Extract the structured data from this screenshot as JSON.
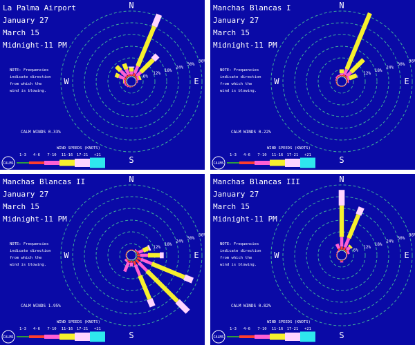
{
  "colors": {
    "background": "#0a0aa6",
    "grid": "#3fae9a",
    "text": "#ffffff",
    "speed_bins": [
      "#ffffff",
      "#2e9b3f",
      "#ff3d2e",
      "#ff5fd3",
      "#f6f02e",
      "#ffd4ff",
      "#2ee8ee"
    ]
  },
  "chart_data": [
    {
      "type": "wind-rose",
      "station": "La Palma Airport",
      "day_label": "January  27",
      "end_label": "March  15",
      "hours_label": "Midnight-11 PM",
      "note_lines": [
        "NOTE: Frequencies",
        "indicate direction",
        "from which the",
        "wind is blowing."
      ],
      "calm_label": "CALM WINDS  0.33%",
      "compass": [
        "N",
        "E",
        "S",
        "W"
      ],
      "ring_labels": [
        "6%",
        "12%",
        "18%",
        "24%",
        "30%",
        "36%"
      ],
      "ring_percent": [
        6,
        12,
        18,
        24,
        30,
        36
      ],
      "directions_deg": [
        0,
        22.5,
        45,
        67.5,
        90,
        112.5,
        135,
        157.5,
        180,
        202.5,
        225,
        247.5,
        270,
        292.5,
        315,
        337.5
      ],
      "speed_bins": [
        "1-3",
        "4-6",
        "7-10",
        "11-16",
        "17-21",
        "+21"
      ],
      "legend_title": "WIND SPEEDS (KNOTS)",
      "legend_calm": "CALMS",
      "frequencies": [
        [
          0.3,
          0.8,
          1.5,
          2.0,
          0.5,
          0
        ],
        [
          0.5,
          1.5,
          4.0,
          22.0,
          6.5,
          0
        ],
        [
          0.3,
          1.0,
          3.0,
          9.0,
          3.0,
          0
        ],
        [
          0.2,
          0.5,
          1.0,
          1.0,
          0,
          0
        ],
        [
          0.2,
          0.3,
          0.3,
          0,
          0,
          0
        ],
        [
          0.1,
          0.2,
          0,
          0,
          0,
          0
        ],
        [
          0.1,
          0.2,
          0,
          0,
          0,
          0
        ],
        [
          0.1,
          0.2,
          0,
          0,
          0,
          0
        ],
        [
          0.2,
          0.3,
          0,
          0,
          0,
          0
        ],
        [
          0.2,
          0.3,
          0.2,
          0,
          0,
          0
        ],
        [
          0.2,
          0.5,
          0.3,
          0,
          0,
          0
        ],
        [
          0.3,
          0.5,
          0.5,
          0,
          0,
          0
        ],
        [
          0.3,
          0.5,
          0.7,
          0.3,
          0,
          0
        ],
        [
          0.4,
          1.0,
          3.0,
          2.0,
          0,
          0
        ],
        [
          0.4,
          1.0,
          4.0,
          3.0,
          0,
          0
        ],
        [
          0.3,
          1.0,
          3.0,
          3.0,
          0,
          0
        ]
      ]
    },
    {
      "type": "wind-rose",
      "station": "Manchas Blancas I",
      "day_label": "January  27",
      "end_label": "March  15",
      "hours_label": "Midnight-11 PM",
      "note_lines": [
        "NOTE: Frequencies",
        "indicate direction",
        "from which the",
        "wind is blowing."
      ],
      "calm_label": "CALM WINDS  0.22%",
      "compass": [
        "N",
        "E",
        "S",
        "W"
      ],
      "ring_labels": [
        "6%",
        "12%",
        "18%",
        "24%",
        "30%",
        "36%"
      ],
      "ring_percent": [
        6,
        12,
        18,
        24,
        30,
        36
      ],
      "directions_deg": [
        0,
        22.5,
        45,
        67.5,
        90,
        112.5,
        135,
        157.5,
        180,
        202.5,
        225,
        247.5,
        270,
        292.5,
        315,
        337.5
      ],
      "speed_bins": [
        "1-3",
        "4-6",
        "7-10",
        "11-16",
        "17-21",
        "+21"
      ],
      "legend_title": "WIND SPEEDS (KNOTS)",
      "legend_calm": "CALMS",
      "frequencies": [
        [
          0.2,
          0.5,
          1.0,
          2.0,
          0,
          0
        ],
        [
          0.3,
          1.0,
          3.0,
          31.0,
          0,
          0
        ],
        [
          0.3,
          1.0,
          3.0,
          9.0,
          0,
          0
        ],
        [
          0.2,
          0.5,
          1.0,
          4.0,
          0,
          0
        ],
        [
          0.2,
          0.5,
          0.5,
          0,
          0,
          0
        ],
        [
          0.1,
          0.2,
          0,
          0,
          0,
          0
        ],
        [
          0.1,
          0.2,
          0,
          0,
          0,
          0
        ],
        [
          0.1,
          0.2,
          0,
          0,
          0,
          0
        ],
        [
          0.1,
          0.2,
          0,
          0,
          0,
          0
        ],
        [
          0.1,
          0.2,
          0,
          0,
          0,
          0
        ],
        [
          0.2,
          0.3,
          0,
          0,
          0,
          0
        ],
        [
          0.2,
          0.3,
          0,
          0,
          0,
          0
        ],
        [
          0.2,
          0.3,
          0,
          0,
          0,
          0
        ],
        [
          0.2,
          0.3,
          0.3,
          0,
          0,
          0
        ],
        [
          0.2,
          0.5,
          0.5,
          0,
          0,
          0
        ],
        [
          0.2,
          0.5,
          0.5,
          0,
          0,
          0
        ]
      ]
    },
    {
      "type": "wind-rose",
      "station": "Manchas Blancas II",
      "day_label": "January  27",
      "end_label": "March  15",
      "hours_label": "Midnight-11 PM",
      "note_lines": [
        "NOTE: Frequencies",
        "indicate direction",
        "from which the",
        "wind is blowing."
      ],
      "calm_label": "CALM WINDS  1.95%",
      "compass": [
        "N",
        "E",
        "S",
        "W"
      ],
      "ring_labels": [
        "6%",
        "12%",
        "18%",
        "24%",
        "30%",
        "36%"
      ],
      "ring_percent": [
        6,
        12,
        18,
        24,
        30,
        36
      ],
      "directions_deg": [
        0,
        22.5,
        45,
        67.5,
        90,
        112.5,
        135,
        157.5,
        180,
        202.5,
        225,
        247.5,
        270,
        292.5,
        315,
        337.5
      ],
      "speed_bins": [
        "1-3",
        "4-6",
        "7-10",
        "11-16",
        "17-21",
        "+21"
      ],
      "legend_title": "WIND SPEEDS (KNOTS)",
      "legend_calm": "CALMS",
      "frequencies": [
        [
          0.2,
          0.3,
          0,
          0,
          0,
          0
        ],
        [
          0.2,
          0.3,
          0,
          0,
          0,
          0
        ],
        [
          0.3,
          0.5,
          0.5,
          0,
          0,
          0
        ],
        [
          0.5,
          1.0,
          2.5,
          3.0,
          0.8,
          0
        ],
        [
          0.5,
          1.5,
          4.0,
          6.0,
          2.0,
          0
        ],
        [
          0.8,
          2.0,
          6.0,
          18.0,
          4.5,
          0
        ],
        [
          0.8,
          2.0,
          6.0,
          22.0,
          7.5,
          0
        ],
        [
          0.8,
          2.0,
          6.0,
          13.0,
          4.0,
          0
        ],
        [
          0.3,
          1.0,
          2.0,
          0,
          0,
          0
        ],
        [
          0.5,
          1.0,
          5.0,
          0,
          0,
          0
        ],
        [
          0.3,
          0.5,
          1.0,
          0,
          0,
          0
        ],
        [
          0.2,
          0.3,
          0,
          0,
          0,
          0
        ],
        [
          0.2,
          0.3,
          0,
          0,
          0,
          0
        ],
        [
          0.2,
          0.3,
          0,
          0,
          0,
          0
        ],
        [
          0.2,
          0.3,
          0,
          0,
          0,
          0
        ],
        [
          0.2,
          0.3,
          0,
          0,
          0,
          0
        ]
      ]
    },
    {
      "type": "wind-rose",
      "station": "Manchas Blancas III",
      "day_label": "January  27",
      "end_label": "March  15",
      "hours_label": "Midnight-11 PM",
      "note_lines": [
        "NOTE: Frequencies",
        "indicate direction",
        "from which the",
        "wind is blowing."
      ],
      "calm_label": "CALM WINDS  0.82%",
      "compass": [
        "N",
        "E",
        "S",
        "W"
      ],
      "ring_labels": [
        "6%",
        "12%",
        "18%",
        "24%",
        "30%",
        "36%"
      ],
      "ring_percent": [
        6,
        12,
        18,
        24,
        30,
        36
      ],
      "directions_deg": [
        0,
        22.5,
        45,
        67.5,
        90,
        112.5,
        135,
        157.5,
        180,
        202.5,
        225,
        247.5,
        270,
        292.5,
        315,
        337.5
      ],
      "speed_bins": [
        "1-3",
        "4-6",
        "7-10",
        "11-16",
        "17-21",
        "+21"
      ],
      "legend_title": "WIND SPEEDS (KNOTS)",
      "legend_calm": "CALMS",
      "frequencies": [
        [
          0.5,
          1.5,
          5.0,
          16.0,
          8.0,
          0
        ],
        [
          0.5,
          1.5,
          5.0,
          13.0,
          4.0,
          0
        ],
        [
          0.3,
          1.0,
          2.0,
          1.0,
          0,
          0
        ],
        [
          0.2,
          0.5,
          1.0,
          0,
          0,
          0
        ],
        [
          0.1,
          0.3,
          0,
          0,
          0,
          0
        ],
        [
          0.1,
          0.2,
          0,
          0,
          0,
          0
        ],
        [
          0.1,
          0.2,
          0,
          0,
          0,
          0
        ],
        [
          0.1,
          0.2,
          0,
          0,
          0,
          0
        ],
        [
          0.2,
          0.5,
          0.5,
          0,
          0,
          0
        ],
        [
          0.1,
          0.2,
          0,
          0,
          0,
          0
        ],
        [
          0.1,
          0.2,
          0,
          0,
          0,
          0
        ],
        [
          0.1,
          0.2,
          0,
          0,
          0,
          0
        ],
        [
          0.1,
          0.2,
          0,
          0,
          0,
          0
        ],
        [
          0.1,
          0.2,
          0,
          0,
          0,
          0
        ],
        [
          0.1,
          0.2,
          0.3,
          0,
          0,
          0
        ],
        [
          0.3,
          1.0,
          2.5,
          0,
          0,
          0
        ]
      ]
    }
  ]
}
